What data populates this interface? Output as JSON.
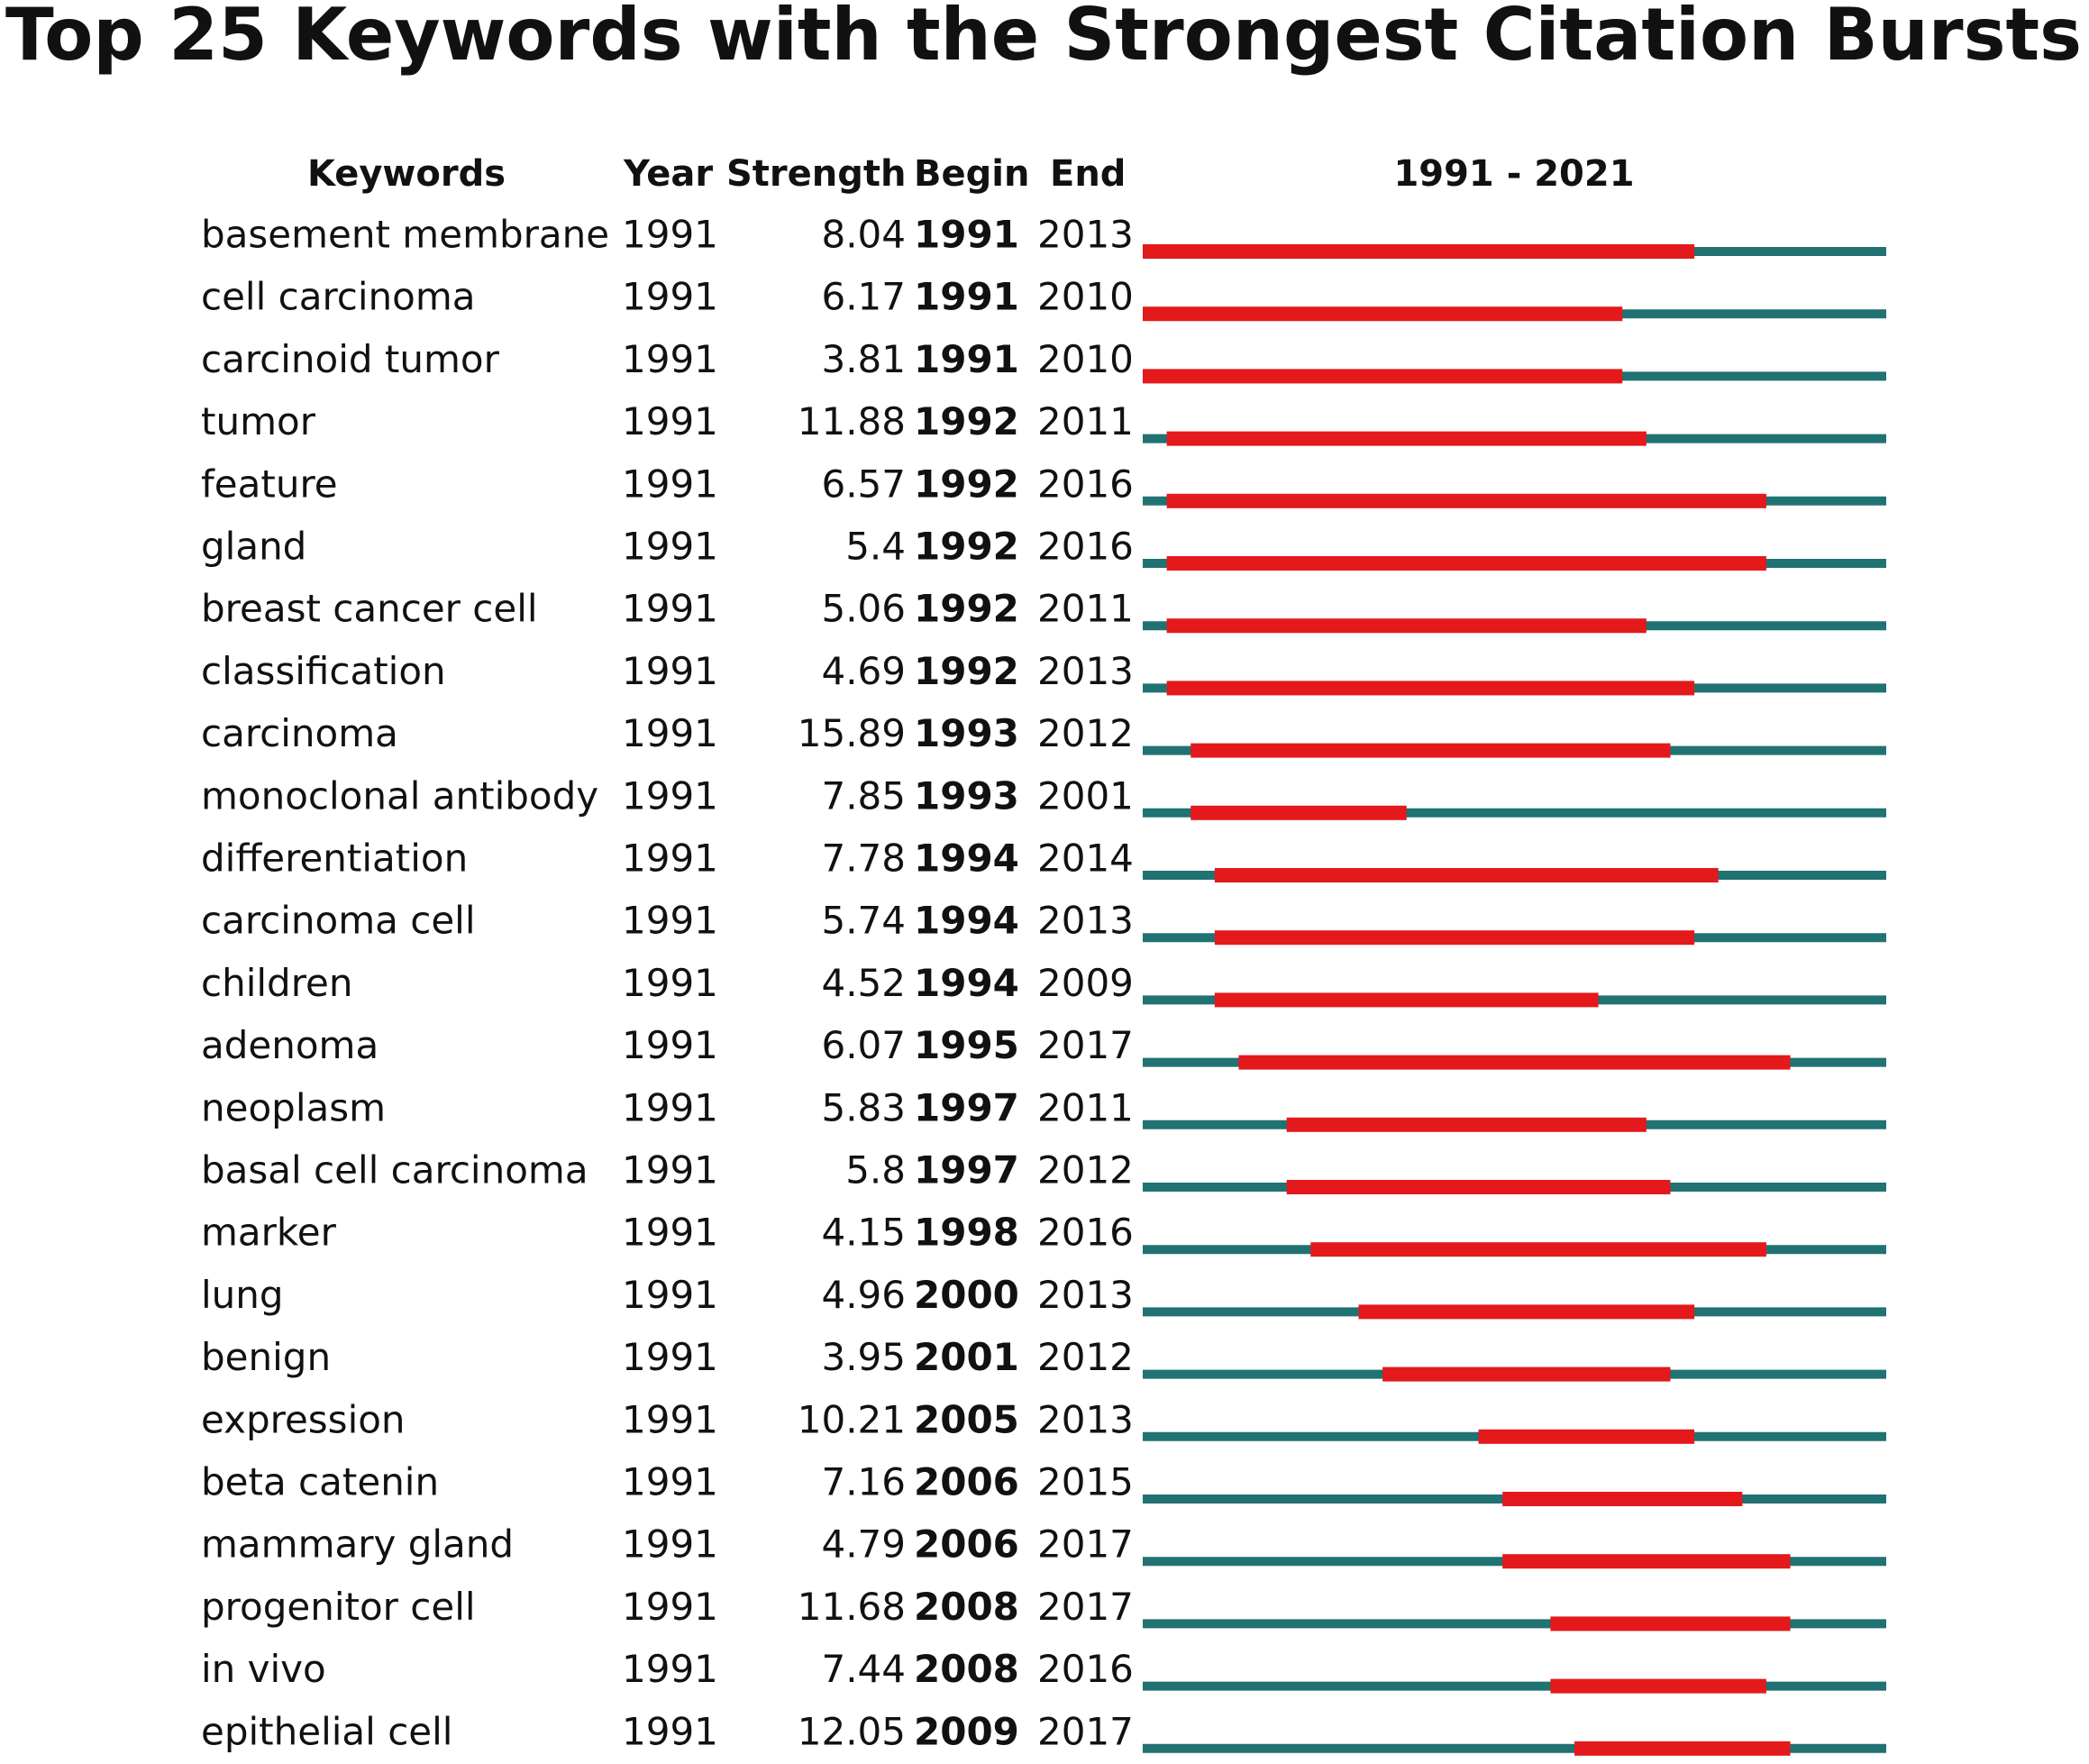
{
  "chart_data": {
    "type": "burst",
    "title": "Top 25 Keywords with the Strongest Citation Bursts",
    "columns": [
      "Keywords",
      "Year",
      "Strength",
      "Begin",
      "End"
    ],
    "range_label": "1991 - 2021",
    "xlim": [
      1991,
      2021
    ],
    "base_color": "#217272",
    "burst_color": "#e3191c",
    "keywords": [
      "basement membrane",
      "cell carcinoma",
      "carcinoid tumor",
      "tumor",
      "feature",
      "gland",
      "breast cancer cell",
      "classification",
      "carcinoma",
      "monoclonal antibody",
      "differentiation",
      "carcinoma cell",
      "children",
      "adenoma",
      "neoplasm",
      "basal cell carcinoma",
      "marker",
      "lung",
      "benign",
      "expression",
      "beta catenin",
      "mammary gland",
      "progenitor cell",
      "in vivo",
      "epithelial cell"
    ],
    "year": [
      1991,
      1991,
      1991,
      1991,
      1991,
      1991,
      1991,
      1991,
      1991,
      1991,
      1991,
      1991,
      1991,
      1991,
      1991,
      1991,
      1991,
      1991,
      1991,
      1991,
      1991,
      1991,
      1991,
      1991,
      1991
    ],
    "strength": [
      8.04,
      6.17,
      3.81,
      11.88,
      6.57,
      5.4,
      5.06,
      4.69,
      15.89,
      7.85,
      7.78,
      5.74,
      4.52,
      6.07,
      5.83,
      5.8,
      4.15,
      4.96,
      3.95,
      10.21,
      7.16,
      4.79,
      11.68,
      7.44,
      12.05
    ],
    "begin": [
      1991,
      1991,
      1991,
      1992,
      1992,
      1992,
      1992,
      1992,
      1993,
      1993,
      1994,
      1994,
      1994,
      1995,
      1997,
      1997,
      1998,
      2000,
      2001,
      2005,
      2006,
      2006,
      2008,
      2008,
      2009
    ],
    "end": [
      2013,
      2010,
      2010,
      2011,
      2016,
      2016,
      2011,
      2013,
      2012,
      2001,
      2014,
      2013,
      2009,
      2017,
      2011,
      2012,
      2016,
      2013,
      2012,
      2013,
      2015,
      2017,
      2017,
      2016,
      2017
    ]
  }
}
